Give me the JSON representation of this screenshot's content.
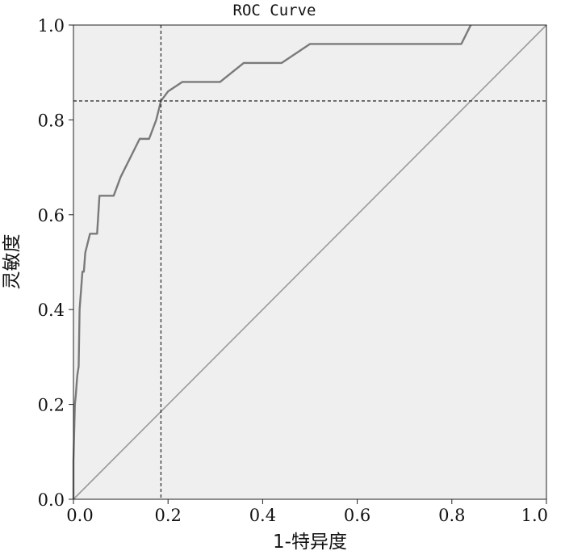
{
  "chart_data": {
    "type": "line",
    "title": "ROC Curve",
    "xlabel": "1-特异度",
    "ylabel": "灵敏度",
    "xlim": [
      0,
      1
    ],
    "ylim": [
      0,
      1
    ],
    "x_ticks": [
      "0.0",
      "0.2",
      "0.4",
      "0.6",
      "0.8",
      "1.0"
    ],
    "y_ticks": [
      "0.0",
      "0.2",
      "0.4",
      "0.6",
      "0.8",
      "1.0"
    ],
    "grid": false,
    "legend": "none",
    "colors": {
      "plot_background": "#efefef",
      "roc_curve": "#7a7a7a",
      "reference_line": "#9a9a9a",
      "cutoff_lines": "#333333"
    },
    "series": [
      {
        "x": [
          0,
          0,
          0.003,
          0.005,
          0.008,
          0.011,
          0.013,
          0.016,
          0.019,
          0.022,
          0.025,
          0.03,
          0.035,
          0.04,
          0.05,
          0.055,
          0.06,
          0.085,
          0.1,
          0.13,
          0.14,
          0.16,
          0.175,
          0.185,
          0.2,
          0.23,
          0.25,
          0.27,
          0.31,
          0.36,
          0.44,
          0.5,
          0.56,
          0.62,
          0.82,
          0.84
        ],
        "y": [
          0,
          0.08,
          0.2,
          0.22,
          0.26,
          0.28,
          0.4,
          0.44,
          0.48,
          0.48,
          0.52,
          0.54,
          0.56,
          0.56,
          0.56,
          0.64,
          0.64,
          0.64,
          0.68,
          0.74,
          0.76,
          0.76,
          0.8,
          0.84,
          0.86,
          0.88,
          0.88,
          0.88,
          0.88,
          0.92,
          0.92,
          0.96,
          0.96,
          0.96,
          0.96,
          1.0
        ]
      },
      {
        "x": [
          0,
          1
        ],
        "y": [
          0,
          1
        ]
      }
    ],
    "cutoff": {
      "x": 0.185,
      "y": 0.84
    }
  }
}
